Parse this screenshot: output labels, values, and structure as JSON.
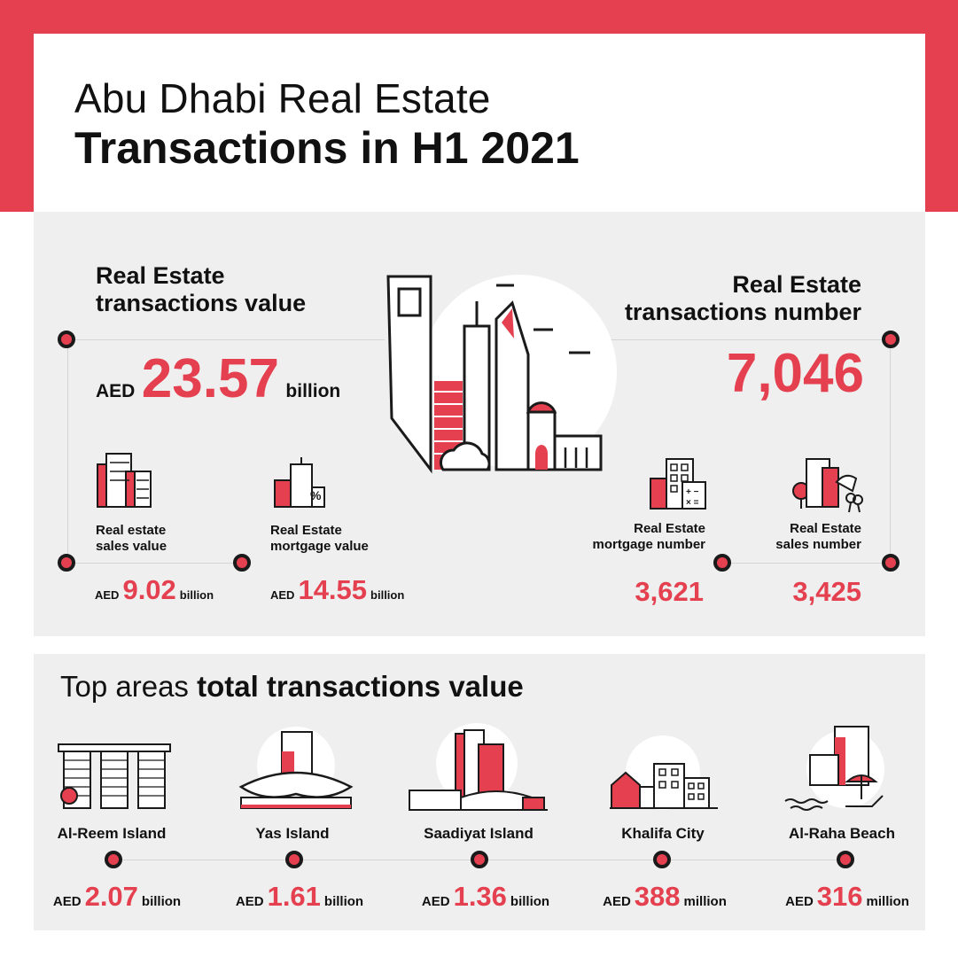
{
  "title": {
    "line1": "Abu Dhabi Real Estate",
    "line2": "Transactions in H1 2021"
  },
  "colors": {
    "accent": "#e4404f",
    "ink": "#1a1a1a",
    "panel": "#efefef"
  },
  "value_section": {
    "heading_line1": "Real Estate",
    "heading_line2": "transactions value",
    "currency": "AED",
    "amount": "23.57",
    "unit": "billion",
    "items": [
      {
        "label_line1": "Real estate",
        "label_line2": "sales value",
        "currency": "AED",
        "amount": "9.02",
        "unit": "billion",
        "icon": "buildings-icon"
      },
      {
        "label_line1": "Real Estate",
        "label_line2": "mortgage value",
        "currency": "AED",
        "amount": "14.55",
        "unit": "billion",
        "icon": "mortgage-building-icon"
      }
    ]
  },
  "number_section": {
    "heading_line1": "Real Estate",
    "heading_line2": "transactions number",
    "amount": "7,046",
    "items": [
      {
        "label_line1": "Real Estate",
        "label_line2": "mortgage number",
        "amount": "3,621",
        "icon": "calculator-building-icon"
      },
      {
        "label_line1": "Real Estate",
        "label_line2": "sales number",
        "amount": "3,425",
        "icon": "keys-building-icon"
      }
    ]
  },
  "top_areas": {
    "heading_light": "Top areas ",
    "heading_bold": "total transactions value",
    "areas": [
      {
        "name": "Al-Reem Island",
        "currency": "AED",
        "amount": "2.07",
        "unit": "billion"
      },
      {
        "name": "Yas Island",
        "currency": "AED",
        "amount": "1.61",
        "unit": "billion"
      },
      {
        "name": "Saadiyat Island",
        "currency": "AED",
        "amount": "1.36",
        "unit": "billion"
      },
      {
        "name": "Khalifa City",
        "currency": "AED",
        "amount": "388",
        "unit": "million"
      },
      {
        "name": "Al-Raha Beach",
        "currency": "AED",
        "amount": "316",
        "unit": "million"
      }
    ]
  }
}
